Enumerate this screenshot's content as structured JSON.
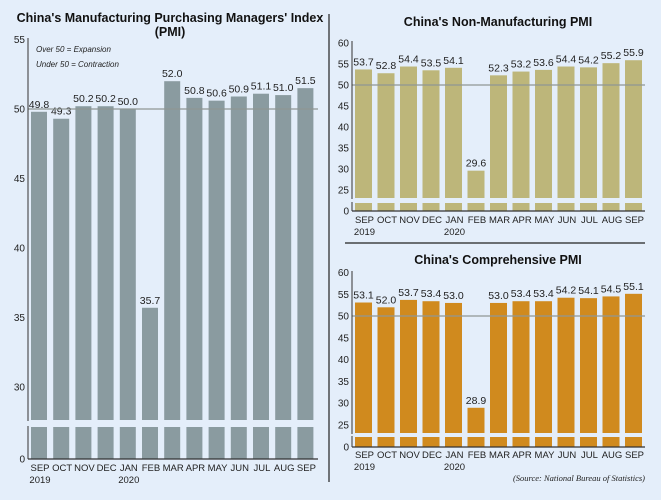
{
  "source": "(Source: National Bureau of Statistics)",
  "chart_data": [
    {
      "type": "bar",
      "title": "China's Manufacturing Purchasing Managers' Index",
      "title_line2": "(PMI)",
      "notes": [
        "Over 50 = Expansion",
        "Under 50 = Contraction"
      ],
      "categories": [
        "SEP",
        "OCT",
        "NOV",
        "DEC",
        "JAN",
        "FEB",
        "MAR",
        "APR",
        "MAY",
        "JUN",
        "JUL",
        "AUG",
        "SEP"
      ],
      "year_labels": {
        "0": "2019",
        "4": "2020"
      },
      "values": [
        49.8,
        49.3,
        50.2,
        50.2,
        50.0,
        35.7,
        52.0,
        50.8,
        50.6,
        50.9,
        51.1,
        51.0,
        51.5
      ],
      "value_labels": [
        "49.8",
        "49.3",
        "50.2",
        "50.2",
        "50.0",
        "35.7",
        "52.0",
        "50.8",
        "50.6",
        "50.9",
        "51.1",
        "51.0",
        "51.5"
      ],
      "yticks": [
        "55",
        "50",
        "45",
        "40",
        "35",
        "30",
        "0"
      ],
      "ylim": [
        27.5,
        55
      ],
      "axis_break": true,
      "reference_line": 50,
      "color": "#8a9ba0"
    },
    {
      "type": "bar",
      "title": "China's Non-Manufacturing PMI",
      "categories": [
        "SEP",
        "OCT",
        "NOV",
        "DEC",
        "JAN",
        "FEB",
        "MAR",
        "APR",
        "MAY",
        "JUN",
        "JUL",
        "AUG",
        "SEP"
      ],
      "year_labels": {
        "0": "2019",
        "4": "2020"
      },
      "values": [
        53.7,
        52.8,
        54.4,
        53.5,
        54.1,
        29.6,
        52.3,
        53.2,
        53.6,
        54.4,
        54.2,
        55.2,
        55.9
      ],
      "value_labels": [
        "53.7",
        "52.8",
        "54.4",
        "53.5",
        "54.1",
        "29.6",
        "52.3",
        "53.2",
        "53.6",
        "54.4",
        "54.2",
        "55.2",
        "55.9"
      ],
      "yticks": [
        "60",
        "55",
        "50",
        "45",
        "40",
        "35",
        "30",
        "25",
        "0"
      ],
      "ylim": [
        23,
        60
      ],
      "axis_break": true,
      "reference_line": 50,
      "color": "#bdb67a"
    },
    {
      "type": "bar",
      "title": "China's Comprehensive PMI",
      "categories": [
        "SEP",
        "OCT",
        "NOV",
        "DEC",
        "JAN",
        "FEB",
        "MAR",
        "APR",
        "MAY",
        "JUN",
        "JUL",
        "AUG",
        "SEP"
      ],
      "year_labels": {
        "0": "2019",
        "4": "2020"
      },
      "values": [
        53.1,
        52.0,
        53.7,
        53.4,
        53.0,
        28.9,
        53.0,
        53.4,
        53.4,
        54.2,
        54.1,
        54.5,
        55.1
      ],
      "value_labels": [
        "53.1",
        "52.0",
        "53.7",
        "53.4",
        "53.0",
        "28.9",
        "53.0",
        "53.4",
        "53.4",
        "54.2",
        "54.1",
        "54.5",
        "55.1"
      ],
      "yticks": [
        "60",
        "55",
        "50",
        "45",
        "40",
        "35",
        "30",
        "25",
        "0"
      ],
      "ylim": [
        23,
        60
      ],
      "axis_break": true,
      "reference_line": 50,
      "color": "#d08a1e"
    }
  ]
}
